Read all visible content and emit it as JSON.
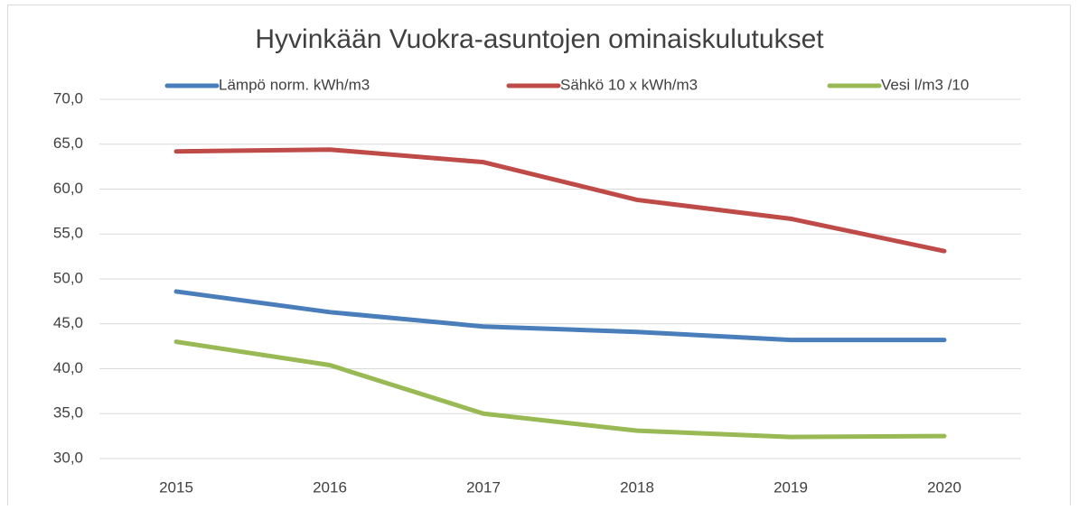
{
  "chart_data": {
    "type": "line",
    "title": "Hyvinkään Vuokra-asuntojen  ominaiskulutukset",
    "categories": [
      "2015",
      "2016",
      "2017",
      "2018",
      "2019",
      "2020"
    ],
    "series": [
      {
        "name": "Lämpö norm. kWh/m3",
        "color": "#4a7ebb",
        "values": [
          48.6,
          46.3,
          44.7,
          44.1,
          43.2,
          43.2
        ]
      },
      {
        "name": "Sähkö 10 x kWh/m3",
        "color": "#be4b48",
        "values": [
          64.2,
          64.4,
          63.0,
          58.8,
          56.7,
          53.1
        ]
      },
      {
        "name": "Vesi  l/m3 /10",
        "color": "#98b954",
        "values": [
          43.0,
          40.4,
          35.0,
          33.1,
          32.4,
          32.5
        ]
      }
    ],
    "ylim": [
      30,
      70
    ],
    "yticks": [
      {
        "value": 30,
        "label": "30,0"
      },
      {
        "value": 35,
        "label": "35,0"
      },
      {
        "value": 40,
        "label": "40,0"
      },
      {
        "value": 45,
        "label": "45,0"
      },
      {
        "value": 50,
        "label": "50,0"
      },
      {
        "value": 55,
        "label": "55,0"
      },
      {
        "value": 60,
        "label": "60,0"
      },
      {
        "value": 65,
        "label": "65,0"
      },
      {
        "value": 70,
        "label": "70,0"
      }
    ],
    "grid": true,
    "legend": "top"
  }
}
